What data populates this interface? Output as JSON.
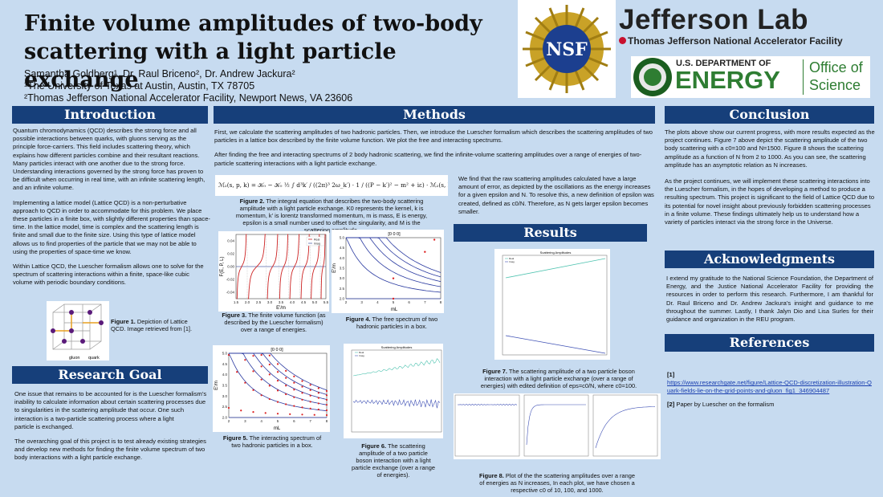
{
  "header": {
    "title_line1": "Finite volume amplitudes of two-body",
    "title_line2": "scattering with a light particle exchange",
    "authors": "Samantha Goldberg¹, Dr. Raul Briceno², Dr. Andrew Jackura²",
    "affil1": "¹The University of Texas at Austin, Austin, TX 78705",
    "affil2": "²Thomas Jefferson National Accelerator Facility, Newport News, VA 23606"
  },
  "logos": {
    "nsf": "NSF",
    "jlab_name": "Jefferson Lab",
    "jlab_sub": "Thomas Jefferson National Accelerator Facility",
    "doe_line1": "U.S. DEPARTMENT OF",
    "doe_line2": "ENERGY",
    "doe_office1": "Office of",
    "doe_office2": "Science"
  },
  "sections": {
    "introduction": "Introduction",
    "research_goal": "Research Goal",
    "methods": "Methods",
    "results": "Results",
    "conclusion": "Conclusion",
    "acknowledgments": "Acknowledgments",
    "references": "References"
  },
  "intro": {
    "p1": "Quantum chromodynamics (QCD) describes the strong force and all possible interactions between quarks, with gluons serving as the principle force-carriers. This field includes scattering theory, which explains how different particles combine and their resultant reactions. Many particles interact with one another due to the strong force. Understanding interactions governed by the strong force has proven to be difficult when occurring in real time, with an infinite scattering length, and an infinite volume.",
    "p2": "Implementing a lattice model (Lattice QCD) is a non-perturbative approach to QCD in order to accommodate for this problem. We place these particles in a finite box, with slightly different properties than space-time.  In the lattice model, time is complex and the scattering length is finite and small due to the finite size. Using this type of lattice model allows us to find properties of the particle that we may not be able to using the properties of space-time we know.",
    "p3": "Within Lattice QCD, the Luescher formalism allows one to solve for the spectrum of scattering interactions within a finite, space-like cubic volume with periodic boundary conditions.",
    "fig1_label": "Figure 1.",
    "fig1_text": "Depiction of Lattice QCD. Image retrieved from [1].",
    "gluon": "gluon",
    "quark": "quark"
  },
  "goal": {
    "p1": "One issue that remains to be accounted for is the Luescher formalism’s inability to calculate information about certain scattering processes due to singularities in the scattering amplitude that occur. One such interaction is a two-particle scattering process where a light",
    "p1b": "particle is exchanged.",
    "p2": "The overarching goal of this project is to test already existing strategies and develop new methods for finding the finite volume spectrum of two body interactions with a light particle exchange."
  },
  "methods": {
    "p1": "First, we calculate the scattering amplitudes of two hadronic particles. Then, we introduce the Luescher formalism which describes the scattering amplitudes of two particles in a lattice box described by the finite volume function. We plot the free and interacting spectrums.",
    "p2": "After finding the free and interacting spectrums of 2 body hadronic scattering, we find the infinite-volume scattering amplitudes over a range of energies of two-particle scattering interactions with a light particle exchange.",
    "equation": "ℳ₂(s, p, k) = 𝒦₀ − 𝒦₀ ½ ∫ d³k′ / ((2π)³ 2ω_k′) · 1 / ((P − k′)² − m² + iε) · ℳ₂(s, k′, k)",
    "fig2_label": "Figure 2.",
    "fig2_text": "The integral equation that describes the two-body scattering amplitude with a light particle exchange. K0 represents the kernel, k is momentum, k' is lorentz transformed momentum, m is mass, E is energy, epsilon is a small number used to offset the singularity, and M is the scattering amplitude.",
    "side_text": "We find that the raw scattering amplitudes calculated have a large amount of error, as depicted by the oscillations as the energy increases for a given epsilon and N. To resolve this, a new definition of epsilon was created, defined as c0/N. Therefore, as N gets larger epsilon becomes smaller.",
    "fig3_label": "Figure 3.",
    "fig3_text": "The finite volume function (as described by the Luescher formalism) over a range of energies.",
    "fig4_label": "Figure 4.",
    "fig4_text": "The free spectrum of two hadronic particles in a box.",
    "fig5_label": "Figure 5.",
    "fig5_text": "The interacting spectrum of two hadronic particles in a box.",
    "fig6_label": "Figure 6.",
    "fig6_text": "The scattering amplitude of a two particle boson interaction with a light particle exchange (over a range of energies)."
  },
  "results": {
    "fig7_label": "Figure 7.",
    "fig7_text": "The scattering amplitude of a two particle boson interaction with a light particle exchange (over a range of energies) with edited definition of eps=c0/N, where c0=100.",
    "fig8_label": "Figure 8.",
    "fig8_text": "Plot of the the scattering amplitudes over a range of energies as N increases, In each plot, we have chosen a respective c0 of 10, 100, and 1000."
  },
  "conclusion": {
    "p1": "The plots above show our current progress, with more results expected as the project continues. Figure 7 above depict the scattering amplitude of the two body scattering with a c0=100 and N=1500. Figure 8 shows the scattering amplitude as a function of N from 2 to 1000. As you can see, the scattering amplitude has an asymptotic relation as N increases.",
    "p2": "As the project continues, we will implement these scattering interactions into the Luescher formalism, in the hopes of developing a method to produce a resulting spectrum. This project is significant to the field of Lattice QCD due to its potential for novel insight about previously forbidden scattering processes in a finite volume. These findings ultimately help us to understand how a variety of particles interact via the strong force in the Universe."
  },
  "ack": {
    "p1": "I extend my gratitude to the National Science Foundation, the Department of Energy, and the Justice National Accelerator Facility for providing the resources in order to perform this research. Furthermore, I am thankful for Dr. Raul Briceno and Dr. Andrew Jackura’s insight and guidance to me throughout the summer. Lastly, I thank Jalyn Dio and Lisa Surles for their guidance and organization in the REU program."
  },
  "refs": {
    "r1_num": "[1]",
    "r1_link": "https://www.researchgate.net/figure/Lattice-QCD-discretization-illustration-Quark-fields-lie-on-the-grid-points-and-gluon_fig1_346904487",
    "r2_num": "[2]",
    "r2_text": "Paper by Luescher on the formalism"
  },
  "chart_data": [
    {
      "type": "line",
      "name_ref": "fig3",
      "xlabel": "E'/m",
      "ylabel": "F(E, P, L)",
      "xlim": [
        1.5,
        5.5
      ],
      "ylim": [
        -0.05,
        0.05
      ],
      "xticks": [
        "1.5",
        "2.0",
        "2.5",
        "3.0",
        "3.5",
        "4.0",
        "4.5",
        "5.0",
        "5.5"
      ],
      "yticks": [
        "0.04",
        "0.02",
        "0.00",
        "-0.02",
        "-0.04"
      ],
      "legend": [
        "Real",
        "Imag"
      ],
      "poles": [
        2.0,
        2.85,
        3.4,
        3.85,
        4.35,
        4.8,
        5.25
      ],
      "colors": {
        "real": "#cc2222",
        "imag": "#5566aa"
      }
    },
    {
      "type": "line",
      "name_ref": "fig4",
      "title": "[0 0 0]",
      "xlabel": "mL",
      "ylabel": "E'/m",
      "xlim": [
        2,
        8
      ],
      "ylim": [
        2.0,
        5.0
      ],
      "xticks": [
        "2",
        "3",
        "4",
        "5",
        "6",
        "7",
        "8"
      ],
      "yticks": [
        "5.0",
        "4.5",
        "4.0",
        "3.5",
        "3.0",
        "2.5",
        "2.0"
      ]
    },
    {
      "type": "scatter",
      "name_ref": "fig5",
      "title": "[0 0 0]",
      "xlabel": "mL",
      "ylabel": "E'/m",
      "xlim": [
        2,
        8
      ],
      "ylim": [
        2.0,
        5.0
      ],
      "xticks": [
        "2",
        "3",
        "4",
        "5",
        "6",
        "7",
        "8"
      ],
      "yticks": [
        "5.0",
        "4.5",
        "4.0",
        "3.5",
        "3.0",
        "2.5",
        "2.0"
      ]
    },
    {
      "type": "line",
      "name_ref": "fig6",
      "title": "Scattering Amplitudes",
      "legend": [
        "Real",
        "Imag"
      ]
    },
    {
      "type": "line",
      "name_ref": "fig7",
      "title": "Scattering Amplitudes",
      "legend": [
        "Real",
        "Imag"
      ]
    },
    {
      "type": "line",
      "name_ref": "fig8",
      "note": "three small panels"
    }
  ]
}
